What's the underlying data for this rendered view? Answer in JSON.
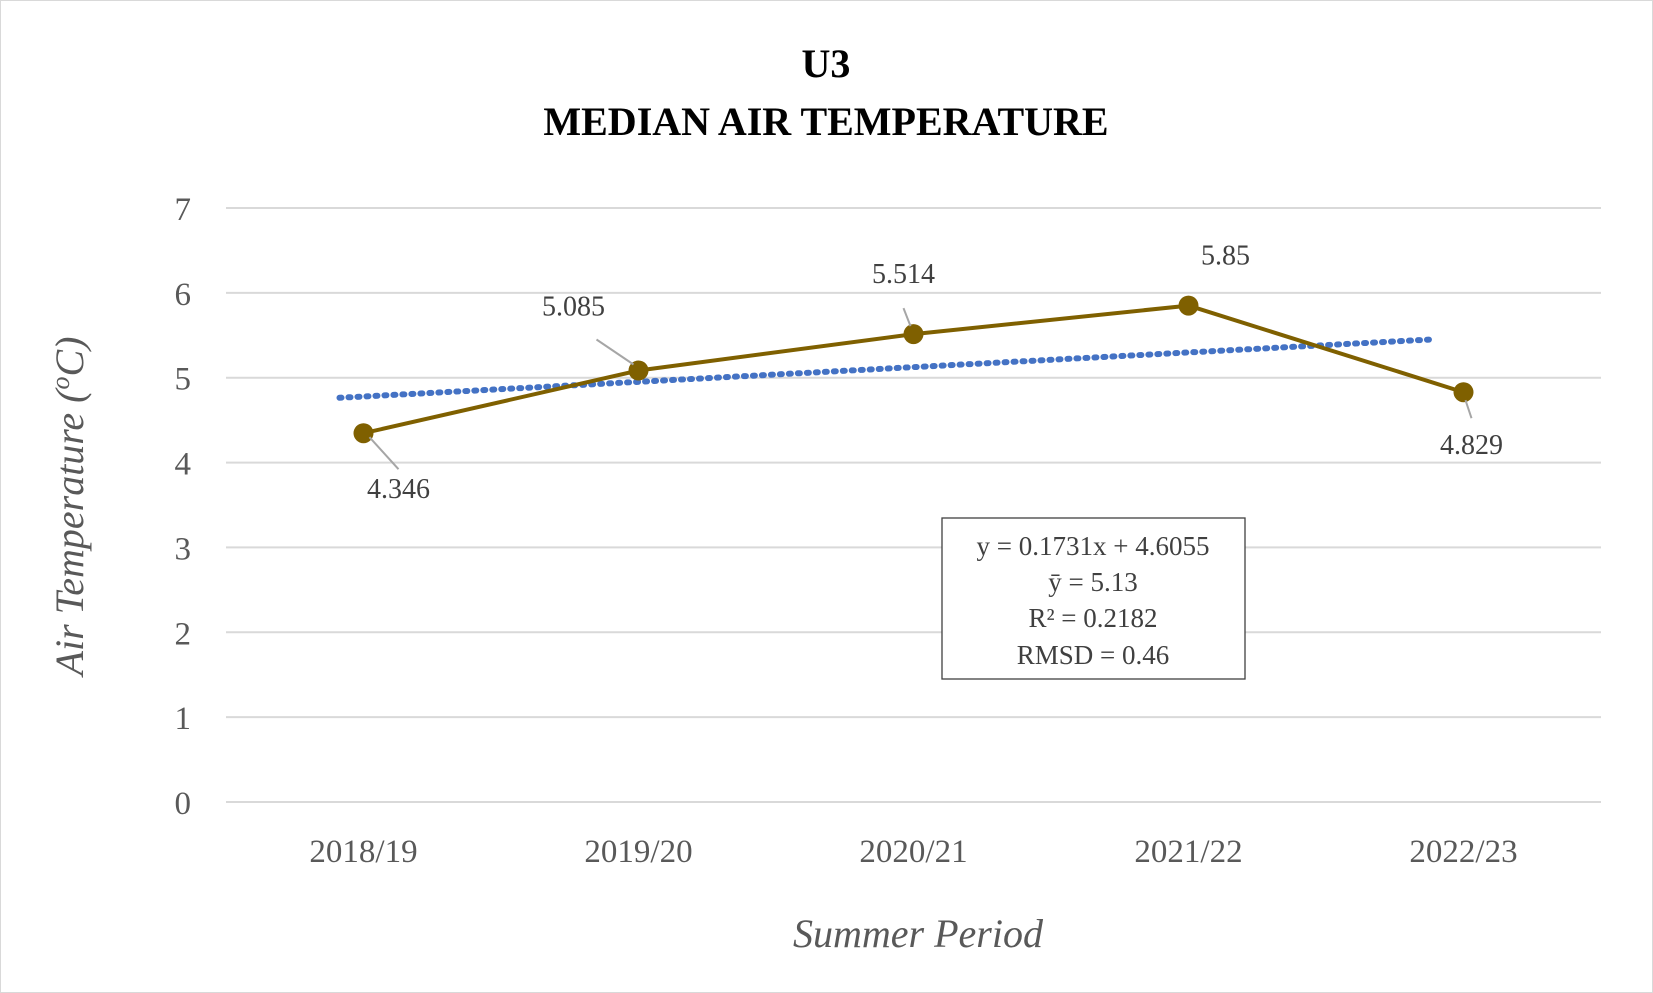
{
  "chart_data": {
    "type": "line",
    "title": [
      "U3",
      "MEDIAN AIR TEMPERATURE"
    ],
    "xlabel": "Summer Period",
    "ylabel": "Air Temperature (",
    "ylabel_sup": "o",
    "ylabel_unit": "C)",
    "categories": [
      "2018/19",
      "2019/20",
      "2020/21",
      "2021/22",
      "2022/23"
    ],
    "ylim": [
      0,
      7
    ],
    "yticks": [
      "0",
      "1",
      "2",
      "3",
      "4",
      "5",
      "6",
      "7"
    ],
    "grid": true,
    "series": [
      {
        "values": [
          4.346,
          5.085,
          5.514,
          5.85,
          4.829
        ],
        "labels": [
          "4.346",
          "5.085",
          "5.514",
          "5.85",
          "4.829"
        ],
        "color": "#7f6000"
      }
    ],
    "trendline": {
      "slope": 0.1731,
      "intercept": 4.6055,
      "color": "#4472c4",
      "style": "dotted"
    },
    "stats_box": [
      "y = 0.1731x + 4.6055",
      "ȳ = 5.13",
      "R² = 0.2182",
      "RMSD = 0.46"
    ],
    "colors": {
      "gridline": "#d9d9d9",
      "leader": "#a6a6a6"
    }
  }
}
